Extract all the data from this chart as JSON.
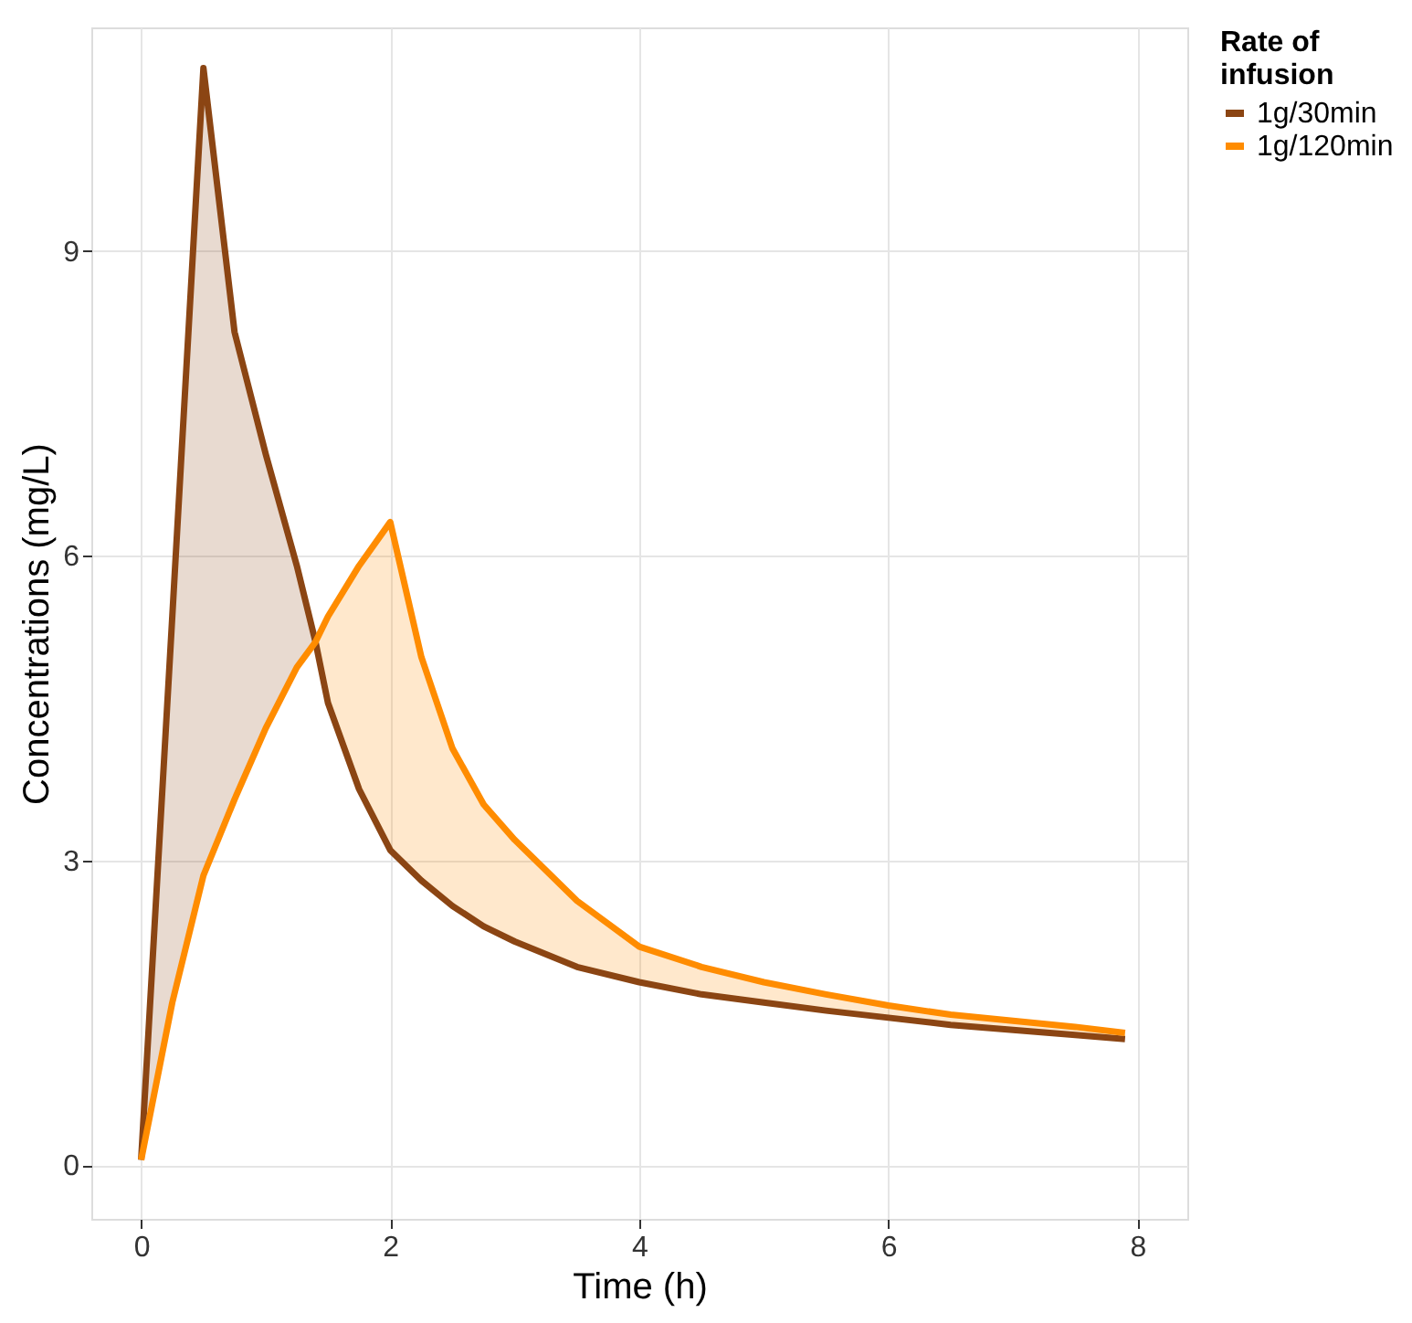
{
  "chart_data": {
    "type": "line",
    "xlabel": "Time (h)",
    "ylabel": "Concentrations (mg/L)",
    "legend_title": "Rate of infusion",
    "x": [
      0,
      0.25,
      0.5,
      0.75,
      1,
      1.25,
      1.4,
      1.5,
      1.75,
      2,
      2.25,
      2.5,
      2.75,
      3,
      3.5,
      4,
      4.5,
      5,
      5.5,
      6,
      6.5,
      7,
      7.5,
      7.9
    ],
    "series": [
      {
        "name": "1g/30min",
        "color": "#8b4513",
        "values": [
          0.05,
          5.4,
          10.8,
          8.2,
          7.0,
          5.9,
          5.15,
          4.55,
          3.7,
          3.1,
          2.8,
          2.55,
          2.35,
          2.2,
          1.95,
          1.8,
          1.68,
          1.6,
          1.52,
          1.45,
          1.38,
          1.33,
          1.28,
          1.24
        ],
        "lower": [
          0.05,
          1.6,
          2.85,
          3.6,
          4.3,
          4.9,
          5.15,
          null,
          null,
          null,
          null,
          null,
          null,
          null,
          null,
          null,
          null,
          null,
          null,
          null,
          null,
          null,
          null,
          null
        ],
        "upper": [
          0.05,
          5.4,
          10.8,
          8.2,
          7.0,
          5.9,
          5.15,
          null,
          null,
          null,
          null,
          null,
          null,
          null,
          null,
          null,
          null,
          null,
          null,
          null,
          null,
          null,
          null,
          null
        ]
      },
      {
        "name": "1g/120min",
        "color": "#ff8c00",
        "values": [
          0.05,
          1.6,
          2.85,
          3.6,
          4.3,
          4.9,
          5.15,
          5.4,
          5.9,
          6.33,
          5.0,
          4.1,
          3.55,
          3.2,
          2.6,
          2.15,
          1.95,
          1.8,
          1.68,
          1.57,
          1.48,
          1.42,
          1.36,
          1.3
        ],
        "lower": [
          null,
          null,
          null,
          null,
          null,
          null,
          5.15,
          4.55,
          3.7,
          3.1,
          2.8,
          2.55,
          2.35,
          2.2,
          1.95,
          1.8,
          1.68,
          1.6,
          1.52,
          1.45,
          1.38,
          1.33,
          1.28,
          1.24
        ],
        "upper": [
          null,
          null,
          null,
          null,
          null,
          null,
          5.15,
          5.4,
          5.9,
          6.33,
          5.0,
          4.1,
          3.55,
          3.2,
          2.6,
          2.15,
          1.95,
          1.8,
          1.68,
          1.57,
          1.48,
          1.42,
          1.36,
          1.3
        ]
      }
    ],
    "xlim": [
      -0.4,
      8.4
    ],
    "xticks": [
      0,
      2,
      4,
      6,
      8
    ],
    "ylim": [
      -0.53,
      11.2
    ],
    "yticks": [
      0,
      3,
      6,
      9
    ],
    "grid": true,
    "legend": "right",
    "line_style": "solid",
    "marker": "none"
  }
}
